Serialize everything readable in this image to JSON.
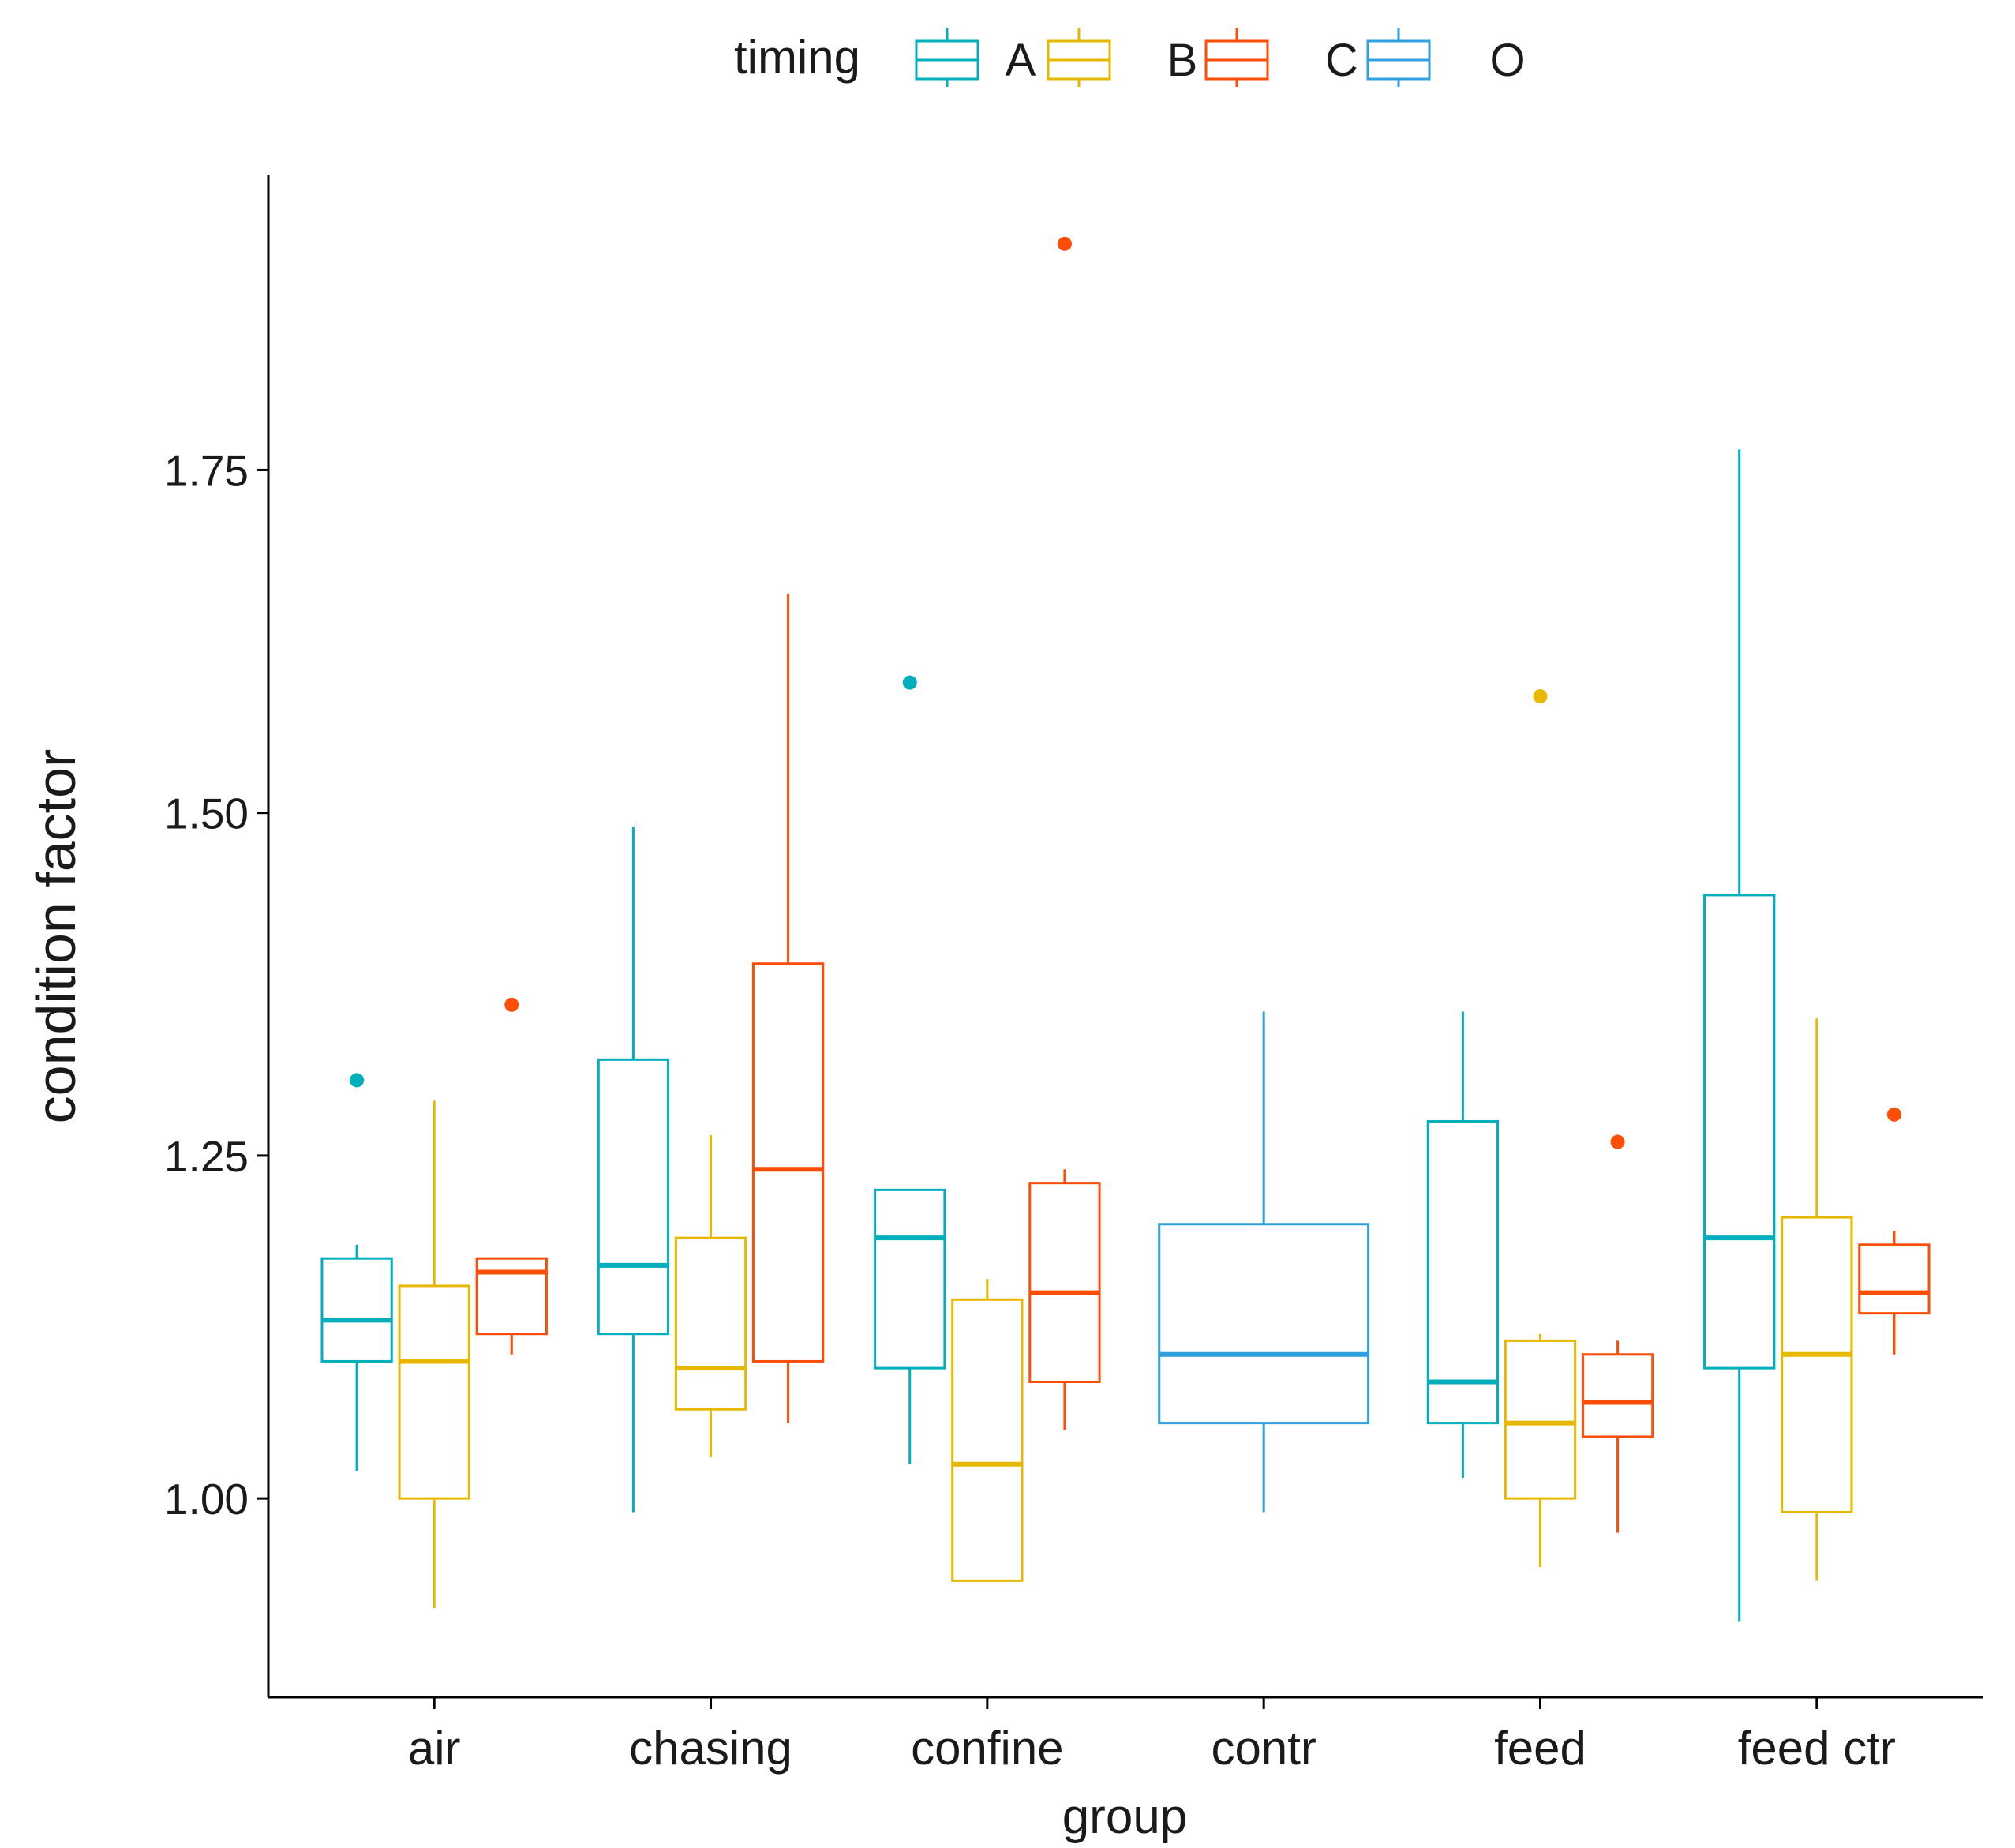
{
  "chart_data": {
    "type": "boxplot",
    "xlabel": "group",
    "ylabel": "condition factor",
    "ylim": [
      0.855,
      1.965
    ],
    "yticks": [
      1.0,
      1.25,
      1.5,
      1.75
    ],
    "ytick_labels": [
      "1.00",
      "1.25",
      "1.50",
      "1.75"
    ],
    "categories": [
      "air",
      "chasing",
      "confine",
      "contr",
      "feed",
      "feed ctr"
    ],
    "legend": {
      "title": "timing",
      "position": "top",
      "entries": [
        {
          "key": "A",
          "label": "A",
          "color": "#00AFBB"
        },
        {
          "key": "B",
          "label": "B",
          "color": "#E7B800"
        },
        {
          "key": "C",
          "label": "C",
          "color": "#FC4E07"
        },
        {
          "key": "O",
          "label": "O",
          "color": "#2E9FDF"
        }
      ]
    },
    "boxes": [
      {
        "group": "air",
        "timing": "A",
        "lower_whisker": 1.02,
        "q1": 1.1,
        "median": 1.13,
        "q3": 1.175,
        "upper_whisker": 1.185,
        "outliers": [
          1.305
        ]
      },
      {
        "group": "air",
        "timing": "B",
        "lower_whisker": 0.92,
        "q1": 1.0,
        "median": 1.1,
        "q3": 1.155,
        "upper_whisker": 1.29,
        "outliers": []
      },
      {
        "group": "air",
        "timing": "C",
        "lower_whisker": 1.105,
        "q1": 1.12,
        "median": 1.165,
        "q3": 1.175,
        "upper_whisker": 1.175,
        "outliers": [
          1.36
        ]
      },
      {
        "group": "chasing",
        "timing": "A",
        "lower_whisker": 0.99,
        "q1": 1.12,
        "median": 1.17,
        "q3": 1.32,
        "upper_whisker": 1.49,
        "outliers": []
      },
      {
        "group": "chasing",
        "timing": "B",
        "lower_whisker": 1.03,
        "q1": 1.065,
        "median": 1.095,
        "q3": 1.19,
        "upper_whisker": 1.265,
        "outliers": []
      },
      {
        "group": "chasing",
        "timing": "C",
        "lower_whisker": 1.055,
        "q1": 1.1,
        "median": 1.24,
        "q3": 1.39,
        "upper_whisker": 1.66,
        "outliers": []
      },
      {
        "group": "confine",
        "timing": "A",
        "lower_whisker": 1.025,
        "q1": 1.095,
        "median": 1.19,
        "q3": 1.225,
        "upper_whisker": 1.225,
        "outliers": [
          1.595
        ]
      },
      {
        "group": "confine",
        "timing": "B",
        "lower_whisker": 0.94,
        "q1": 0.94,
        "median": 1.025,
        "q3": 1.145,
        "upper_whisker": 1.16,
        "outliers": []
      },
      {
        "group": "confine",
        "timing": "C",
        "lower_whisker": 1.05,
        "q1": 1.085,
        "median": 1.15,
        "q3": 1.23,
        "upper_whisker": 1.24,
        "outliers": [
          1.915
        ]
      },
      {
        "group": "contr",
        "timing": "O",
        "lower_whisker": 0.99,
        "q1": 1.055,
        "median": 1.105,
        "q3": 1.2,
        "upper_whisker": 1.355,
        "outliers": []
      },
      {
        "group": "feed",
        "timing": "A",
        "lower_whisker": 1.015,
        "q1": 1.055,
        "median": 1.085,
        "q3": 1.275,
        "upper_whisker": 1.355,
        "outliers": []
      },
      {
        "group": "feed",
        "timing": "B",
        "lower_whisker": 0.95,
        "q1": 1.0,
        "median": 1.055,
        "q3": 1.115,
        "upper_whisker": 1.12,
        "outliers": [
          1.585
        ]
      },
      {
        "group": "feed",
        "timing": "C",
        "lower_whisker": 0.975,
        "q1": 1.045,
        "median": 1.07,
        "q3": 1.105,
        "upper_whisker": 1.115,
        "outliers": [
          1.26
        ]
      },
      {
        "group": "feed ctr",
        "timing": "A",
        "lower_whisker": 0.91,
        "q1": 1.095,
        "median": 1.19,
        "q3": 1.44,
        "upper_whisker": 1.765,
        "outliers": []
      },
      {
        "group": "feed ctr",
        "timing": "B",
        "lower_whisker": 0.94,
        "q1": 0.99,
        "median": 1.105,
        "q3": 1.205,
        "upper_whisker": 1.35,
        "outliers": []
      },
      {
        "group": "feed ctr",
        "timing": "C",
        "lower_whisker": 1.105,
        "q1": 1.135,
        "median": 1.15,
        "q3": 1.185,
        "upper_whisker": 1.195,
        "outliers": [
          1.28
        ]
      }
    ]
  }
}
